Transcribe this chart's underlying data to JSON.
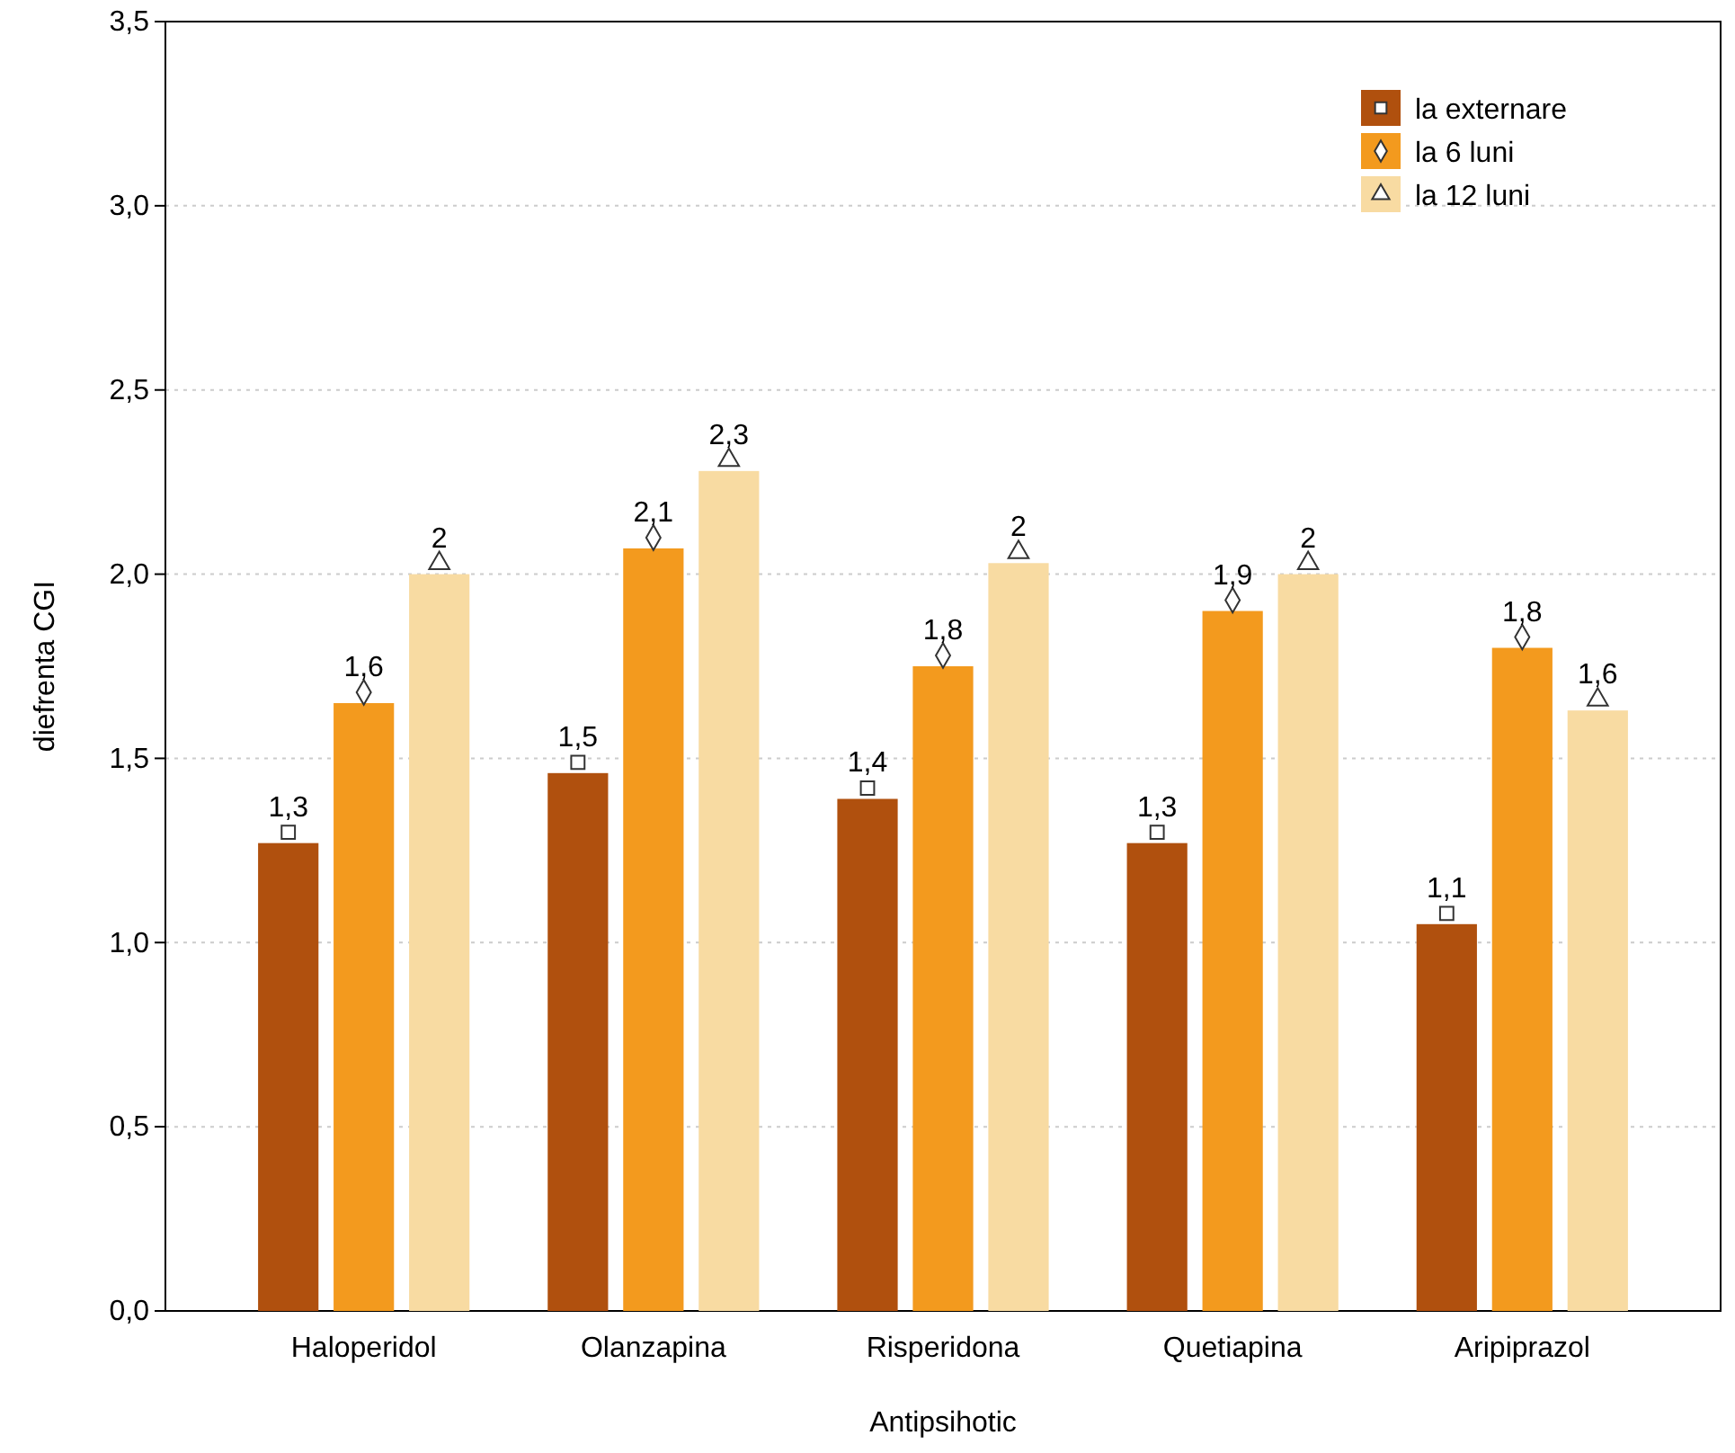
{
  "chart_data": {
    "type": "bar",
    "xlabel": "Antipsihotic",
    "ylabel": "diefrenta CGI",
    "categories": [
      "Haloperidol",
      "Olanzapina",
      "Risperidona",
      "Quetiapina",
      "Aripiprazol"
    ],
    "series": [
      {
        "name": "la externare",
        "color": "#b0500e",
        "marker": "square",
        "values": [
          1.27,
          1.46,
          1.39,
          1.27,
          1.05
        ],
        "value_labels": [
          "1,3",
          "1,5",
          "1,4",
          "1,3",
          "1,1"
        ]
      },
      {
        "name": "la 6 luni",
        "color": "#f39a1e",
        "marker": "diamond",
        "values": [
          1.65,
          2.07,
          1.75,
          1.9,
          1.8
        ],
        "value_labels": [
          "1,6",
          "2,1",
          "1,8",
          "1,9",
          "1,8"
        ]
      },
      {
        "name": "la 12 luni",
        "color": "#f8dba2",
        "marker": "triangle",
        "values": [
          2.0,
          2.28,
          2.03,
          2.0,
          1.63
        ],
        "value_labels": [
          "2",
          "2,3",
          "2",
          "2",
          "1,6"
        ]
      }
    ],
    "ylim": [
      0,
      3.5
    ],
    "yticks": [
      {
        "value": 0,
        "label": "0,0"
      },
      {
        "value": 0.5,
        "label": "0,5"
      },
      {
        "value": 1,
        "label": "1,0"
      },
      {
        "value": 1.5,
        "label": "1,5"
      },
      {
        "value": 2,
        "label": "2,0"
      },
      {
        "value": 2.5,
        "label": "2,5"
      },
      {
        "value": 3,
        "label": "3,0"
      },
      {
        "value": 3.5,
        "label": "3,5"
      }
    ],
    "grid": "y",
    "legend": "top right"
  }
}
